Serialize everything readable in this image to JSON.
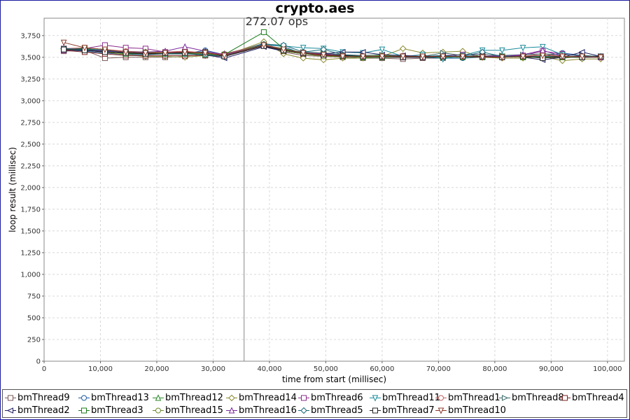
{
  "chart_data": {
    "type": "line",
    "title": "crypto.aes",
    "xlabel": "time from start (millisec)",
    "ylabel": "loop result (millisec)",
    "xlim": [
      0,
      103000
    ],
    "ylim": [
      0,
      3950
    ],
    "x_ticks": [
      0,
      10000,
      20000,
      30000,
      40000,
      50000,
      60000,
      70000,
      80000,
      90000,
      100000
    ],
    "x_tick_labels": [
      "0",
      "10,000",
      "20,000",
      "30,000",
      "40,000",
      "50,000",
      "60,000",
      "70,000",
      "80,000",
      "90,000",
      "100,000"
    ],
    "y_ticks": [
      0,
      250,
      500,
      750,
      1000,
      1250,
      1500,
      1750,
      2000,
      2250,
      2500,
      2750,
      3000,
      3250,
      3500,
      3750
    ],
    "y_tick_labels": [
      "0",
      "250",
      "500",
      "750",
      "1,000",
      "1,250",
      "1,500",
      "1,750",
      "2,000",
      "2,250",
      "2,500",
      "2,750",
      "3,000",
      "3,250",
      "3,500",
      "3,750"
    ],
    "grid": true,
    "legend_position": "bottom",
    "marker_line": {
      "x": 35500,
      "label": "272.07 ops"
    },
    "x": [
      3500,
      7200,
      10800,
      14500,
      18000,
      21500,
      25000,
      28600,
      32000,
      39000,
      42500,
      46000,
      49600,
      53000,
      56600,
      60000,
      63700,
      67200,
      70800,
      74300,
      77800,
      81300,
      85000,
      88500,
      92000,
      95500,
      98800
    ],
    "series": [
      {
        "name": "bmThread9",
        "marker": "square",
        "color": "#7a5a5a",
        "values": [
          3570,
          3580,
          3490,
          3500,
          3500,
          3500,
          3510,
          3540,
          3520,
          3650,
          3560,
          3520,
          3510,
          3500,
          3490,
          3490,
          3480,
          3490,
          3490,
          3540,
          3500,
          3500,
          3510,
          3500,
          3490,
          3510,
          3500
        ]
      },
      {
        "name": "bmThread13",
        "marker": "circle",
        "color": "#1f5aa0",
        "values": [
          3590,
          3570,
          3550,
          3530,
          3530,
          3540,
          3540,
          3580,
          3530,
          3660,
          3620,
          3540,
          3520,
          3510,
          3510,
          3500,
          3500,
          3500,
          3490,
          3490,
          3500,
          3500,
          3510,
          3510,
          3550,
          3520,
          3500
        ]
      },
      {
        "name": "bmThread12",
        "marker": "triangle-up",
        "color": "#2a8a2a",
        "values": [
          3580,
          3600,
          3560,
          3550,
          3550,
          3550,
          3550,
          3530,
          3540,
          3640,
          3600,
          3550,
          3540,
          3510,
          3500,
          3500,
          3510,
          3500,
          3500,
          3500,
          3500,
          3510,
          3510,
          3520,
          3510,
          3500,
          3500
        ]
      },
      {
        "name": "bmThread14",
        "marker": "diamond",
        "color": "#8a8a30",
        "values": [
          3590,
          3580,
          3560,
          3530,
          3510,
          3510,
          3500,
          3520,
          3520,
          3680,
          3540,
          3490,
          3470,
          3490,
          3490,
          3510,
          3600,
          3550,
          3560,
          3570,
          3500,
          3490,
          3490,
          3510,
          3460,
          3480,
          3480
        ]
      },
      {
        "name": "bmThread6",
        "marker": "square",
        "color": "#8a2a8a",
        "values": [
          3600,
          3600,
          3640,
          3610,
          3600,
          3560,
          3560,
          3550,
          3530,
          3640,
          3590,
          3540,
          3520,
          3510,
          3510,
          3500,
          3500,
          3500,
          3520,
          3530,
          3530,
          3510,
          3520,
          3570,
          3540,
          3510,
          3500
        ]
      },
      {
        "name": "bmThread11",
        "marker": "triangle-down",
        "color": "#1a8a9a",
        "values": [
          3590,
          3600,
          3580,
          3550,
          3540,
          3540,
          3550,
          3520,
          3510,
          3640,
          3630,
          3610,
          3600,
          3560,
          3550,
          3590,
          3510,
          3530,
          3480,
          3520,
          3580,
          3580,
          3610,
          3620,
          3530,
          3520,
          3510
        ]
      },
      {
        "name": "bmThread1",
        "marker": "circle",
        "color": "#c06060",
        "values": [
          3600,
          3610,
          3590,
          3570,
          3560,
          3560,
          3570,
          3550,
          3540,
          3650,
          3590,
          3560,
          3540,
          3520,
          3520,
          3510,
          3520,
          3510,
          3510,
          3510,
          3510,
          3510,
          3510,
          3540,
          3510,
          3500,
          3500
        ]
      },
      {
        "name": "bmThread8",
        "marker": "triangle-right",
        "color": "#3a6a6a",
        "values": [
          3600,
          3590,
          3580,
          3560,
          3560,
          3550,
          3560,
          3540,
          3520,
          3640,
          3580,
          3560,
          3550,
          3530,
          3520,
          3530,
          3510,
          3510,
          3550,
          3520,
          3530,
          3520,
          3530,
          3540,
          3530,
          3520,
          3510
        ]
      },
      {
        "name": "bmThread4",
        "marker": "square",
        "color": "#7a2020",
        "values": [
          3580,
          3560,
          3540,
          3520,
          3520,
          3520,
          3520,
          3520,
          3510,
          3630,
          3570,
          3540,
          3520,
          3510,
          3510,
          3500,
          3500,
          3500,
          3510,
          3510,
          3510,
          3510,
          3510,
          3510,
          3500,
          3500,
          3500
        ]
      },
      {
        "name": "bmThread2",
        "marker": "triangle-left",
        "color": "#202060",
        "values": [
          3600,
          3580,
          3570,
          3550,
          3540,
          3540,
          3550,
          3530,
          3490,
          3620,
          3570,
          3540,
          3540,
          3560,
          3560,
          3530,
          3520,
          3510,
          3520,
          3510,
          3510,
          3510,
          3500,
          3470,
          3500,
          3560,
          3510
        ]
      },
      {
        "name": "bmThread3",
        "marker": "square",
        "color": "#1a7a1a",
        "values": [
          3590,
          3600,
          3570,
          3540,
          3540,
          3540,
          3540,
          3530,
          3530,
          3790,
          3600,
          3550,
          3540,
          3510,
          3500,
          3500,
          3500,
          3500,
          3510,
          3510,
          3510,
          3510,
          3500,
          3510,
          3500,
          3500,
          3500
        ]
      },
      {
        "name": "bmThread15",
        "marker": "circle",
        "color": "#6a8a2a",
        "values": [
          3590,
          3590,
          3580,
          3560,
          3560,
          3550,
          3550,
          3540,
          3530,
          3650,
          3570,
          3540,
          3510,
          3510,
          3510,
          3520,
          3510,
          3510,
          3510,
          3510,
          3510,
          3510,
          3500,
          3500,
          3500,
          3500,
          3500
        ]
      },
      {
        "name": "bmThread16",
        "marker": "triangle-up",
        "color": "#7a2a9a",
        "values": [
          3580,
          3590,
          3570,
          3560,
          3560,
          3570,
          3620,
          3570,
          3530,
          3640,
          3590,
          3550,
          3540,
          3520,
          3510,
          3510,
          3500,
          3500,
          3510,
          3510,
          3510,
          3510,
          3530,
          3580,
          3510,
          3500,
          3500
        ]
      },
      {
        "name": "bmThread5",
        "marker": "diamond",
        "color": "#1a6a7a",
        "values": [
          3600,
          3590,
          3580,
          3560,
          3550,
          3540,
          3540,
          3530,
          3510,
          3650,
          3640,
          3560,
          3590,
          3530,
          3510,
          3510,
          3510,
          3510,
          3520,
          3510,
          3560,
          3510,
          3510,
          3510,
          3510,
          3500,
          3510
        ]
      },
      {
        "name": "bmThread7",
        "marker": "square",
        "color": "#202020",
        "values": [
          3590,
          3580,
          3560,
          3550,
          3540,
          3550,
          3550,
          3560,
          3510,
          3630,
          3580,
          3550,
          3530,
          3520,
          3510,
          3510,
          3500,
          3500,
          3510,
          3510,
          3510,
          3500,
          3510,
          3490,
          3510,
          3500,
          3510
        ]
      },
      {
        "name": "bmThread10",
        "marker": "triangle-down",
        "color": "#8a3a2a",
        "values": [
          3670,
          3610,
          3590,
          3560,
          3550,
          3550,
          3560,
          3550,
          3520,
          3640,
          3590,
          3550,
          3530,
          3510,
          3510,
          3510,
          3510,
          3510,
          3510,
          3510,
          3500,
          3500,
          3510,
          3520,
          3510,
          3510,
          3500
        ]
      }
    ]
  }
}
